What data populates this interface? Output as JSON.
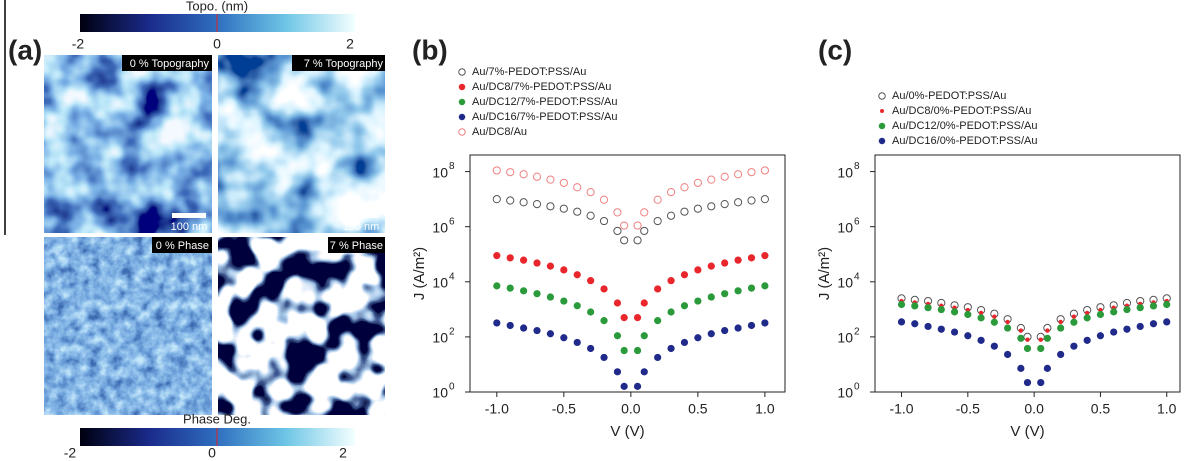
{
  "panel_a": {
    "label": "(a)",
    "colorbars": [
      {
        "title": "Topo. (nm)",
        "ticks": [
          -2,
          0,
          2
        ]
      },
      {
        "title": "Phase Deg.",
        "ticks": [
          -2,
          0,
          2
        ]
      }
    ],
    "images": [
      {
        "label": "0 % Topography",
        "scale": "100 nm"
      },
      {
        "label": "7 % Topography",
        "scale": "100 nm"
      },
      {
        "label": "0 % Phase"
      },
      {
        "label": "7 % Phase"
      }
    ]
  },
  "chart_data": [
    {
      "type": "scatter",
      "title": "(b)",
      "xlabel": "V (V)",
      "ylabel": "J (A/m²)",
      "log_y": true,
      "legend": "above",
      "xlim": [
        -1.2,
        1.15
      ],
      "ylim": [
        1,
        400000000
      ],
      "xticks": [
        {
          "value": -1,
          "label": "-1.0"
        },
        {
          "value": -0.5,
          "label": "-0.5"
        },
        {
          "value": 0,
          "label": "0.0"
        },
        {
          "value": 0.5,
          "label": "0.5"
        },
        {
          "value": 1,
          "label": "1.0"
        }
      ],
      "yticks": [
        {
          "value": 1,
          "label": "10",
          "power": "0"
        },
        {
          "value": 100,
          "label": "10",
          "power": "2"
        },
        {
          "value": 10000,
          "label": "10",
          "power": "4"
        },
        {
          "value": 1000000,
          "label": "10",
          "power": "6"
        },
        {
          "value": 100000000,
          "label": "10",
          "power": "8"
        }
      ],
      "x": [
        -1,
        -0.9,
        -0.8,
        -0.7,
        -0.6,
        -0.5,
        -0.4,
        -0.3,
        -0.2,
        -0.1,
        -0.05,
        0.05,
        0.1,
        0.2,
        0.3,
        0.4,
        0.5,
        0.6,
        0.7,
        0.8,
        0.9,
        1
      ],
      "series": [
        {
          "name": "Au/7%-PEDOT:PSS/Au",
          "color": "#555555",
          "marker": "open",
          "values": [
            10000000,
            8900000,
            7700000,
            6600000,
            5500000,
            4500000,
            3500000,
            2500000,
            1600000,
            700000,
            320000,
            320000,
            700000,
            1600000,
            2500000,
            3500000,
            4500000,
            5500000,
            6600000,
            7700000,
            8900000,
            10000000
          ]
        },
        {
          "name": "Au/DC8/7%-PEDOT:PSS/Au",
          "color": "#e8262b",
          "marker": "filled",
          "values": [
            89000,
            74000,
            61000,
            48000,
            37000,
            27000,
            18000,
            11000,
            5500,
            1700,
            500,
            500,
            1700,
            5500,
            11000,
            18000,
            27000,
            37000,
            48000,
            61000,
            74000,
            89000
          ]
        },
        {
          "name": "Au/DC12/7%-PEDOT:PSS/Au",
          "color": "#2a9a3a",
          "marker": "filled",
          "values": [
            7100,
            5900,
            4700,
            3700,
            2800,
            2000,
            1350,
            800,
            390,
            110,
            32,
            32,
            110,
            390,
            800,
            1350,
            2000,
            2800,
            3700,
            4700,
            5900,
            7100
          ]
        },
        {
          "name": "Au/DC16/7%-PEDOT:PSS/Au",
          "color": "#1f2a8a",
          "marker": "filled",
          "values": [
            320,
            260,
            210,
            170,
            130,
            93,
            63,
            38,
            18,
            5.4,
            1.6,
            1.6,
            5.4,
            18,
            38,
            63,
            93,
            130,
            170,
            210,
            260,
            320
          ]
        },
        {
          "name": "Au/DC8/Au",
          "color": "#f08080",
          "marker": "open",
          "values": [
            110000000,
            95000000,
            80000000,
            65000000,
            51000000,
            39000000,
            27000000,
            18000000,
            9500000,
            3300000,
            1100000,
            1100000,
            3300000,
            9500000,
            18000000,
            27000000,
            39000000,
            51000000,
            65000000,
            80000000,
            95000000,
            110000000
          ]
        }
      ]
    },
    {
      "type": "scatter",
      "title": "(c)",
      "xlabel": "V (V)",
      "ylabel": "J (A/m²)",
      "log_y": true,
      "legend": "above",
      "xlim": [
        -1.2,
        1.1
      ],
      "ylim": [
        1,
        400000000
      ],
      "xticks": [
        {
          "value": -1,
          "label": "-1.0"
        },
        {
          "value": -0.5,
          "label": "-0.5"
        },
        {
          "value": 0,
          "label": "0.0"
        },
        {
          "value": 0.5,
          "label": "0.5"
        },
        {
          "value": 1,
          "label": "1.0"
        }
      ],
      "yticks": [
        {
          "value": 1,
          "label": "10",
          "power": "0"
        },
        {
          "value": 100,
          "label": "10",
          "power": "2"
        },
        {
          "value": 10000,
          "label": "10",
          "power": "4"
        },
        {
          "value": 1000000,
          "label": "10",
          "power": "6"
        },
        {
          "value": 100000000,
          "label": "10",
          "power": "8"
        }
      ],
      "x": [
        -1,
        -0.9,
        -0.8,
        -0.7,
        -0.6,
        -0.5,
        -0.4,
        -0.3,
        -0.2,
        -0.1,
        -0.05,
        0.05,
        0.1,
        0.2,
        0.3,
        0.4,
        0.5,
        0.6,
        0.7,
        0.8,
        0.9,
        1
      ],
      "series": [
        {
          "name": "Au/0%-PEDOT:PSS/Au",
          "color": "#555555",
          "marker": "open",
          "values": [
            2500,
            2200,
            2000,
            1700,
            1400,
            1200,
            940,
            690,
            440,
            210,
            100,
            100,
            210,
            440,
            690,
            940,
            1200,
            1400,
            1700,
            2000,
            2200,
            2500
          ]
        },
        {
          "name": "Au/DC8/0%-PEDOT:PSS/Au",
          "color": "#e8262b",
          "marker": "dot",
          "values": [
            2000,
            1780,
            1570,
            1350,
            1150,
            940,
            740,
            540,
            350,
            170,
            79,
            79,
            170,
            350,
            540,
            740,
            940,
            1150,
            1350,
            1570,
            1780,
            2000
          ]
        },
        {
          "name": "Au/DC12/0%-PEDOT:PSS/Au",
          "color": "#2a9a3a",
          "marker": "filled",
          "values": [
            1500,
            1330,
            1150,
            980,
            810,
            650,
            490,
            340,
            210,
            89,
            38,
            38,
            89,
            210,
            340,
            490,
            650,
            810,
            980,
            1150,
            1330,
            1500
          ]
        },
        {
          "name": "Au/DC16/0%-PEDOT:PSS/Au",
          "color": "#1f2a8a",
          "marker": "filled",
          "values": [
            350,
            300,
            240,
            190,
            150,
            110,
            75,
            46,
            23,
            7.2,
            2.2,
            2.2,
            7.2,
            23,
            46,
            75,
            110,
            150,
            190,
            240,
            300,
            350
          ]
        }
      ]
    }
  ]
}
